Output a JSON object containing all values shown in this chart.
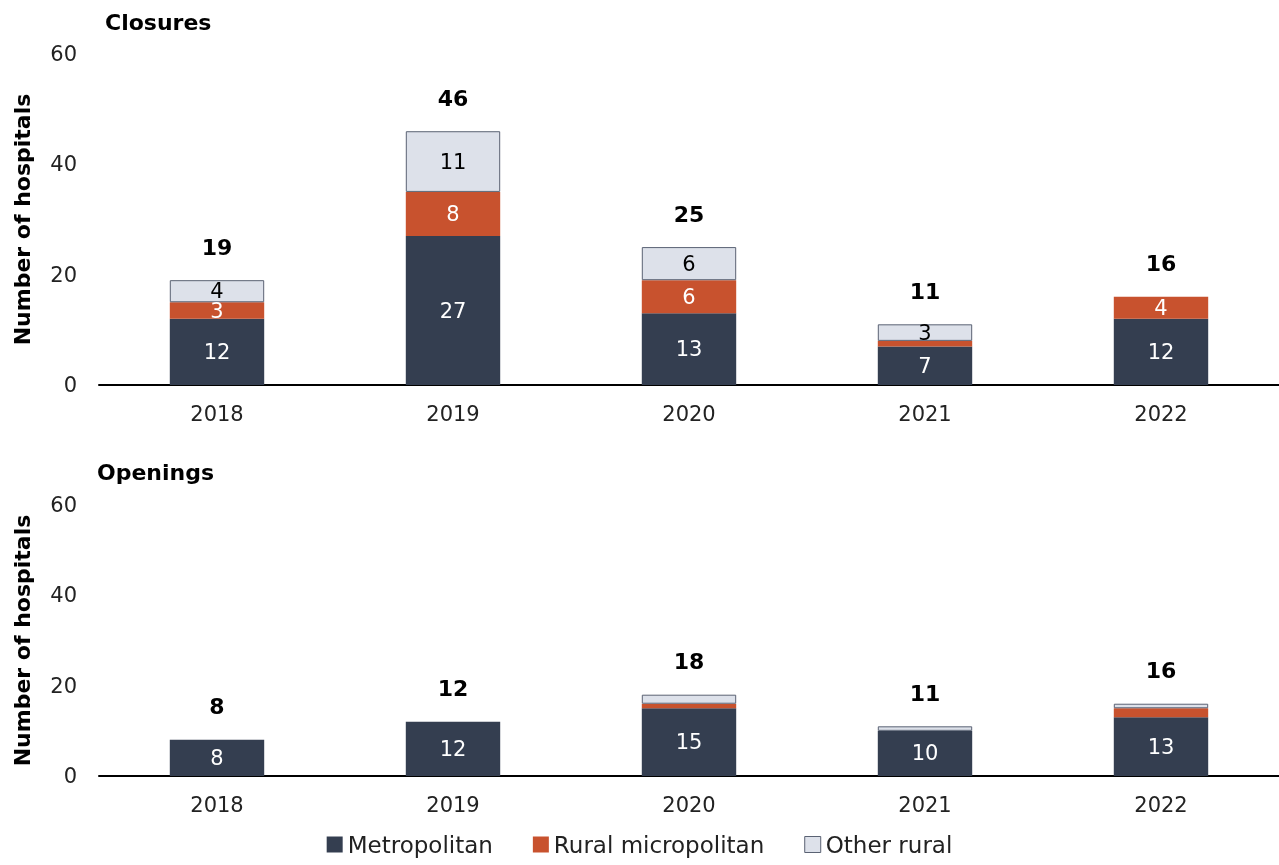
{
  "chart_data": [
    {
      "type": "bar",
      "title": "Closures",
      "ylabel": "Number of hospitals",
      "categories": [
        "2018",
        "2019",
        "2020",
        "2021",
        "2022"
      ],
      "stacked": true,
      "series": [
        {
          "color": "#343e50",
          "values": [
            12,
            27,
            13,
            7,
            12
          ],
          "value_labels": [
            "12",
            "27",
            "13",
            "7",
            "12"
          ]
        },
        {
          "color": "#c8522e",
          "values": [
            3,
            8,
            6,
            1,
            4
          ],
          "value_labels": [
            "3",
            "8",
            "6",
            null,
            "4"
          ]
        },
        {
          "color": "#dde1ea",
          "values": [
            4,
            11,
            6,
            3,
            0
          ],
          "value_labels": [
            "4",
            "11",
            "6",
            "3",
            null
          ]
        }
      ],
      "totals": [
        "19",
        "46",
        "25",
        "11",
        "16"
      ],
      "ylim": [
        0,
        60
      ],
      "yticks": [
        0,
        20,
        40,
        60
      ],
      "grid": false
    },
    {
      "type": "bar",
      "title": "Openings",
      "ylabel": "Number of hospitals",
      "categories": [
        "2018",
        "2019",
        "2020",
        "2021",
        "2022"
      ],
      "stacked": true,
      "series": [
        {
          "name": "Metropolitan",
          "color": "#343e50",
          "values": [
            8,
            12,
            15,
            10,
            13
          ],
          "value_labels": [
            "8",
            "12",
            "15",
            "10",
            "13"
          ]
        },
        {
          "name": "Rural micropolitan",
          "color": "#c8522e",
          "values": [
            0,
            0,
            1,
            0,
            2
          ]
        },
        {
          "name": "Other rural",
          "color": "#dde1ea",
          "values": [
            0,
            0,
            2,
            1,
            1
          ]
        }
      ],
      "totals": [
        "8",
        "12",
        "18",
        "11",
        "16"
      ],
      "ylim": [
        0,
        60
      ],
      "yticks": [
        0,
        20,
        40,
        60
      ],
      "grid": false,
      "legend": "bottom"
    }
  ]
}
